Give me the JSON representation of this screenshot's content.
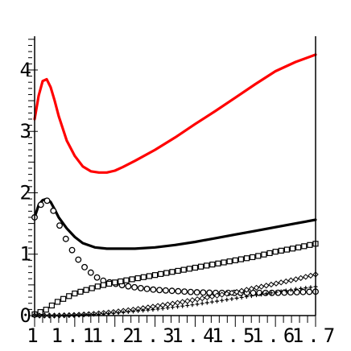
{
  "chart_data": {
    "type": "line",
    "title": "",
    "xlabel": "",
    "ylabel": "",
    "xlim": [
      1.0,
      1.7
    ],
    "ylim": [
      0,
      4.55
    ],
    "grid": false,
    "legend": "none",
    "x_ticks": [
      {
        "value": 1.0,
        "label": "1"
      },
      {
        "value": 1.1,
        "label": "1.1"
      },
      {
        "value": 1.2,
        "label": "1.2"
      },
      {
        "value": 1.3,
        "label": "1.3"
      },
      {
        "value": 1.4,
        "label": "1.4"
      },
      {
        "value": 1.5,
        "label": "1.5"
      },
      {
        "value": 1.6,
        "label": "1.6"
      },
      {
        "value": 1.7,
        "label": "1.7"
      }
    ],
    "y_ticks": [
      {
        "value": 0,
        "label": "0"
      },
      {
        "value": 1,
        "label": "1"
      },
      {
        "value": 2,
        "label": "2"
      },
      {
        "value": 3,
        "label": "3"
      },
      {
        "value": 4,
        "label": "4"
      }
    ],
    "series": [
      {
        "style": "line",
        "color": "#ff0000",
        "width": 3.2,
        "x": [
          1.0,
          1.01,
          1.02,
          1.03,
          1.04,
          1.05,
          1.06,
          1.08,
          1.1,
          1.12,
          1.14,
          1.16,
          1.18,
          1.2,
          1.22,
          1.25,
          1.3,
          1.35,
          1.4,
          1.45,
          1.5,
          1.55,
          1.6,
          1.65,
          1.7
        ],
        "y": [
          3.2,
          3.58,
          3.82,
          3.85,
          3.72,
          3.5,
          3.25,
          2.85,
          2.6,
          2.43,
          2.35,
          2.33,
          2.33,
          2.36,
          2.42,
          2.52,
          2.7,
          2.9,
          3.12,
          3.33,
          3.55,
          3.77,
          3.98,
          4.13,
          4.25
        ]
      },
      {
        "style": "line",
        "color": "#000000",
        "width": 3.2,
        "x": [
          1.0,
          1.01,
          1.02,
          1.03,
          1.04,
          1.05,
          1.06,
          1.08,
          1.1,
          1.12,
          1.15,
          1.18,
          1.2,
          1.25,
          1.3,
          1.35,
          1.4,
          1.45,
          1.5,
          1.55,
          1.6,
          1.65,
          1.7
        ],
        "y": [
          1.6,
          1.8,
          1.88,
          1.9,
          1.85,
          1.73,
          1.6,
          1.42,
          1.28,
          1.18,
          1.11,
          1.09,
          1.09,
          1.09,
          1.11,
          1.15,
          1.2,
          1.26,
          1.32,
          1.38,
          1.44,
          1.5,
          1.56
        ]
      },
      {
        "style": "circles",
        "x": [
          1.0,
          1.01,
          1.02,
          1.03,
          1.04,
          1.05,
          1.06,
          1.07,
          1.08,
          1.09,
          1.1,
          1.11,
          1.12,
          1.13,
          1.14,
          1.15,
          1.17,
          1.2,
          1.23,
          1.26,
          1.3,
          1.35,
          1.4,
          1.45,
          1.5,
          1.55,
          1.6,
          1.65,
          1.7
        ],
        "y": [
          1.6,
          1.75,
          1.85,
          1.88,
          1.8,
          1.66,
          1.5,
          1.35,
          1.22,
          1.1,
          1.0,
          0.9,
          0.82,
          0.75,
          0.7,
          0.64,
          0.57,
          0.52,
          0.48,
          0.45,
          0.42,
          0.4,
          0.38,
          0.37,
          0.37,
          0.37,
          0.37,
          0.38,
          0.39
        ]
      },
      {
        "style": "squares",
        "x": [
          1.0,
          1.03,
          1.05,
          1.08,
          1.1,
          1.13,
          1.16,
          1.2,
          1.25,
          1.3,
          1.35,
          1.4,
          1.45,
          1.5,
          1.55,
          1.6,
          1.65,
          1.7
        ],
        "y": [
          0.02,
          0.1,
          0.2,
          0.3,
          0.36,
          0.42,
          0.48,
          0.54,
          0.6,
          0.66,
          0.72,
          0.78,
          0.84,
          0.9,
          0.96,
          1.04,
          1.1,
          1.17
        ]
      },
      {
        "style": "diamonds",
        "x": [
          1.0,
          1.05,
          1.1,
          1.15,
          1.2,
          1.25,
          1.3,
          1.35,
          1.4,
          1.45,
          1.5,
          1.55,
          1.6,
          1.65,
          1.7
        ],
        "y": [
          0.0,
          0.0,
          0.01,
          0.03,
          0.06,
          0.1,
          0.15,
          0.2,
          0.26,
          0.32,
          0.38,
          0.45,
          0.52,
          0.59,
          0.67
        ]
      },
      {
        "style": "crosses",
        "x": [
          1.0,
          1.05,
          1.1,
          1.15,
          1.2,
          1.25,
          1.3,
          1.35,
          1.4,
          1.45,
          1.5,
          1.55,
          1.6,
          1.65,
          1.7
        ],
        "y": [
          0.0,
          0.0,
          0.01,
          0.02,
          0.04,
          0.07,
          0.1,
          0.14,
          0.18,
          0.23,
          0.28,
          0.33,
          0.38,
          0.43,
          0.47
        ]
      }
    ]
  }
}
